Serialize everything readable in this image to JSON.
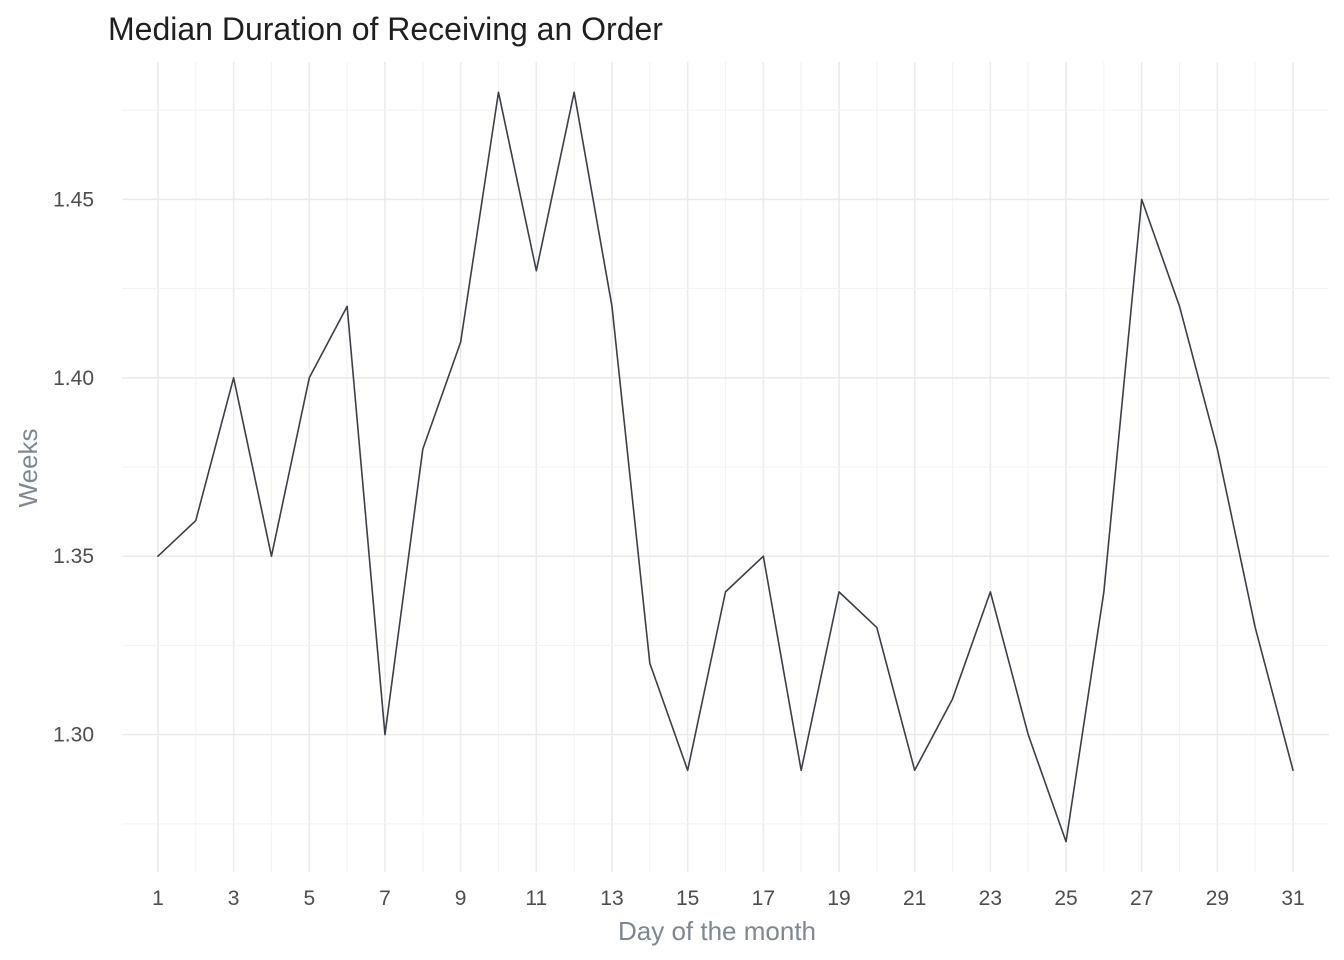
{
  "chart_data": {
    "type": "line",
    "title": "Median Duration of Receiving an Order",
    "xlabel": "Day of the month",
    "ylabel": "Weeks",
    "x": [
      1,
      2,
      3,
      4,
      5,
      6,
      7,
      8,
      9,
      10,
      11,
      12,
      13,
      14,
      15,
      16,
      17,
      18,
      19,
      20,
      21,
      22,
      23,
      24,
      25,
      26,
      27,
      28,
      29,
      30,
      31
    ],
    "values": [
      1.35,
      1.36,
      1.4,
      1.35,
      1.4,
      1.42,
      1.3,
      1.38,
      1.41,
      1.48,
      1.43,
      1.48,
      1.42,
      1.32,
      1.29,
      1.34,
      1.35,
      1.29,
      1.34,
      1.33,
      1.29,
      1.31,
      1.34,
      1.3,
      1.27,
      1.34,
      1.45,
      1.42,
      1.38,
      1.33,
      1.29
    ],
    "xlim": [
      0.05,
      31.95
    ],
    "ylim": [
      1.2615,
      1.4885
    ],
    "x_ticks": [
      "1",
      "3",
      "5",
      "7",
      "9",
      "11",
      "13",
      "15",
      "17",
      "19",
      "21",
      "23",
      "25",
      "27",
      "29",
      "31"
    ],
    "y_ticks": [
      "1.30",
      "1.35",
      "1.40",
      "1.45"
    ],
    "grid": true,
    "line_color": "#3b3f46"
  }
}
